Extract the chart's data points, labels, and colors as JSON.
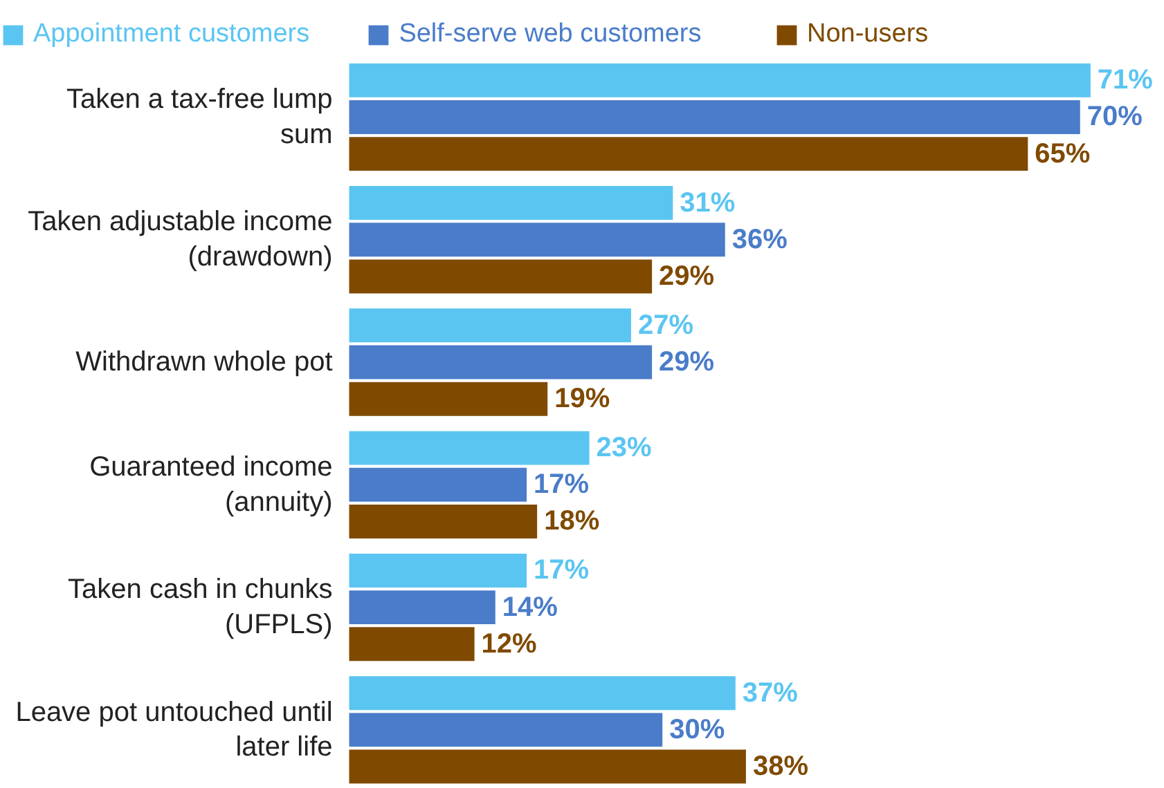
{
  "chart_data": {
    "type": "bar",
    "orientation": "horizontal",
    "categories": [
      "Taken a tax-free lump\nsum",
      "Taken adjustable income\n(drawdown)",
      "Withdrawn whole pot",
      "Guaranteed income\n(annuity)",
      "Taken cash in chunks\n(UFPLS)",
      "Leave pot untouched until\nlater life"
    ],
    "series": [
      {
        "name": "Appointment customers",
        "color": "#5bc5f2",
        "values": [
          71,
          31,
          27,
          23,
          17,
          37
        ],
        "value_labels": [
          "71%",
          "31%",
          "27%",
          "23%",
          "17%",
          "37%"
        ]
      },
      {
        "name": "Self-serve web customers",
        "color": "#4a7cc9",
        "values": [
          70,
          36,
          29,
          17,
          14,
          30
        ],
        "value_labels": [
          "70%",
          "36%",
          "29%",
          "17%",
          "14%",
          "30%"
        ]
      },
      {
        "name": "Non-users",
        "color": "#7f4a00",
        "values": [
          65,
          29,
          19,
          18,
          12,
          38
        ],
        "value_labels": [
          "65%",
          "29%",
          "19%",
          "18%",
          "12%",
          "38%"
        ]
      }
    ],
    "legend": "top left",
    "grid": false
  }
}
